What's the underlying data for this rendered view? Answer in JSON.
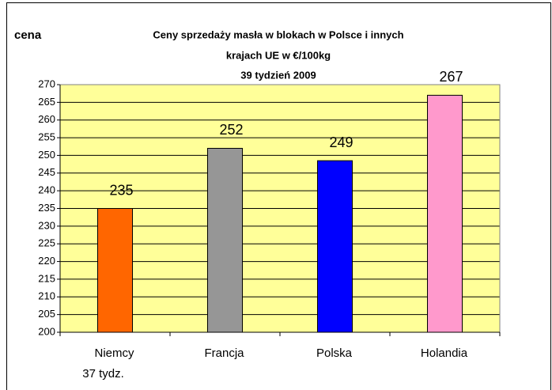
{
  "chart_data": {
    "type": "bar",
    "title": [
      "Ceny sprzedaży masła w blokach w Polsce i  innych",
      "krajach UE w €/100kg",
      "39 tydzień 2009"
    ],
    "ylabel": "cena",
    "categories": [
      "Niemcy",
      "Francja",
      "Polska",
      "Holandia"
    ],
    "annotation": "37 tydz.",
    "values": [
      235,
      252,
      248.5,
      267
    ],
    "value_labels": [
      "235",
      "252",
      "249",
      "267"
    ],
    "colors": [
      "#ff6600",
      "#969696",
      "#0000ff",
      "#ff99cc"
    ],
    "ylim": [
      200,
      270
    ],
    "yticks": [
      200,
      205,
      210,
      215,
      220,
      225,
      230,
      235,
      240,
      245,
      250,
      255,
      260,
      265,
      270
    ],
    "grid": true
  }
}
